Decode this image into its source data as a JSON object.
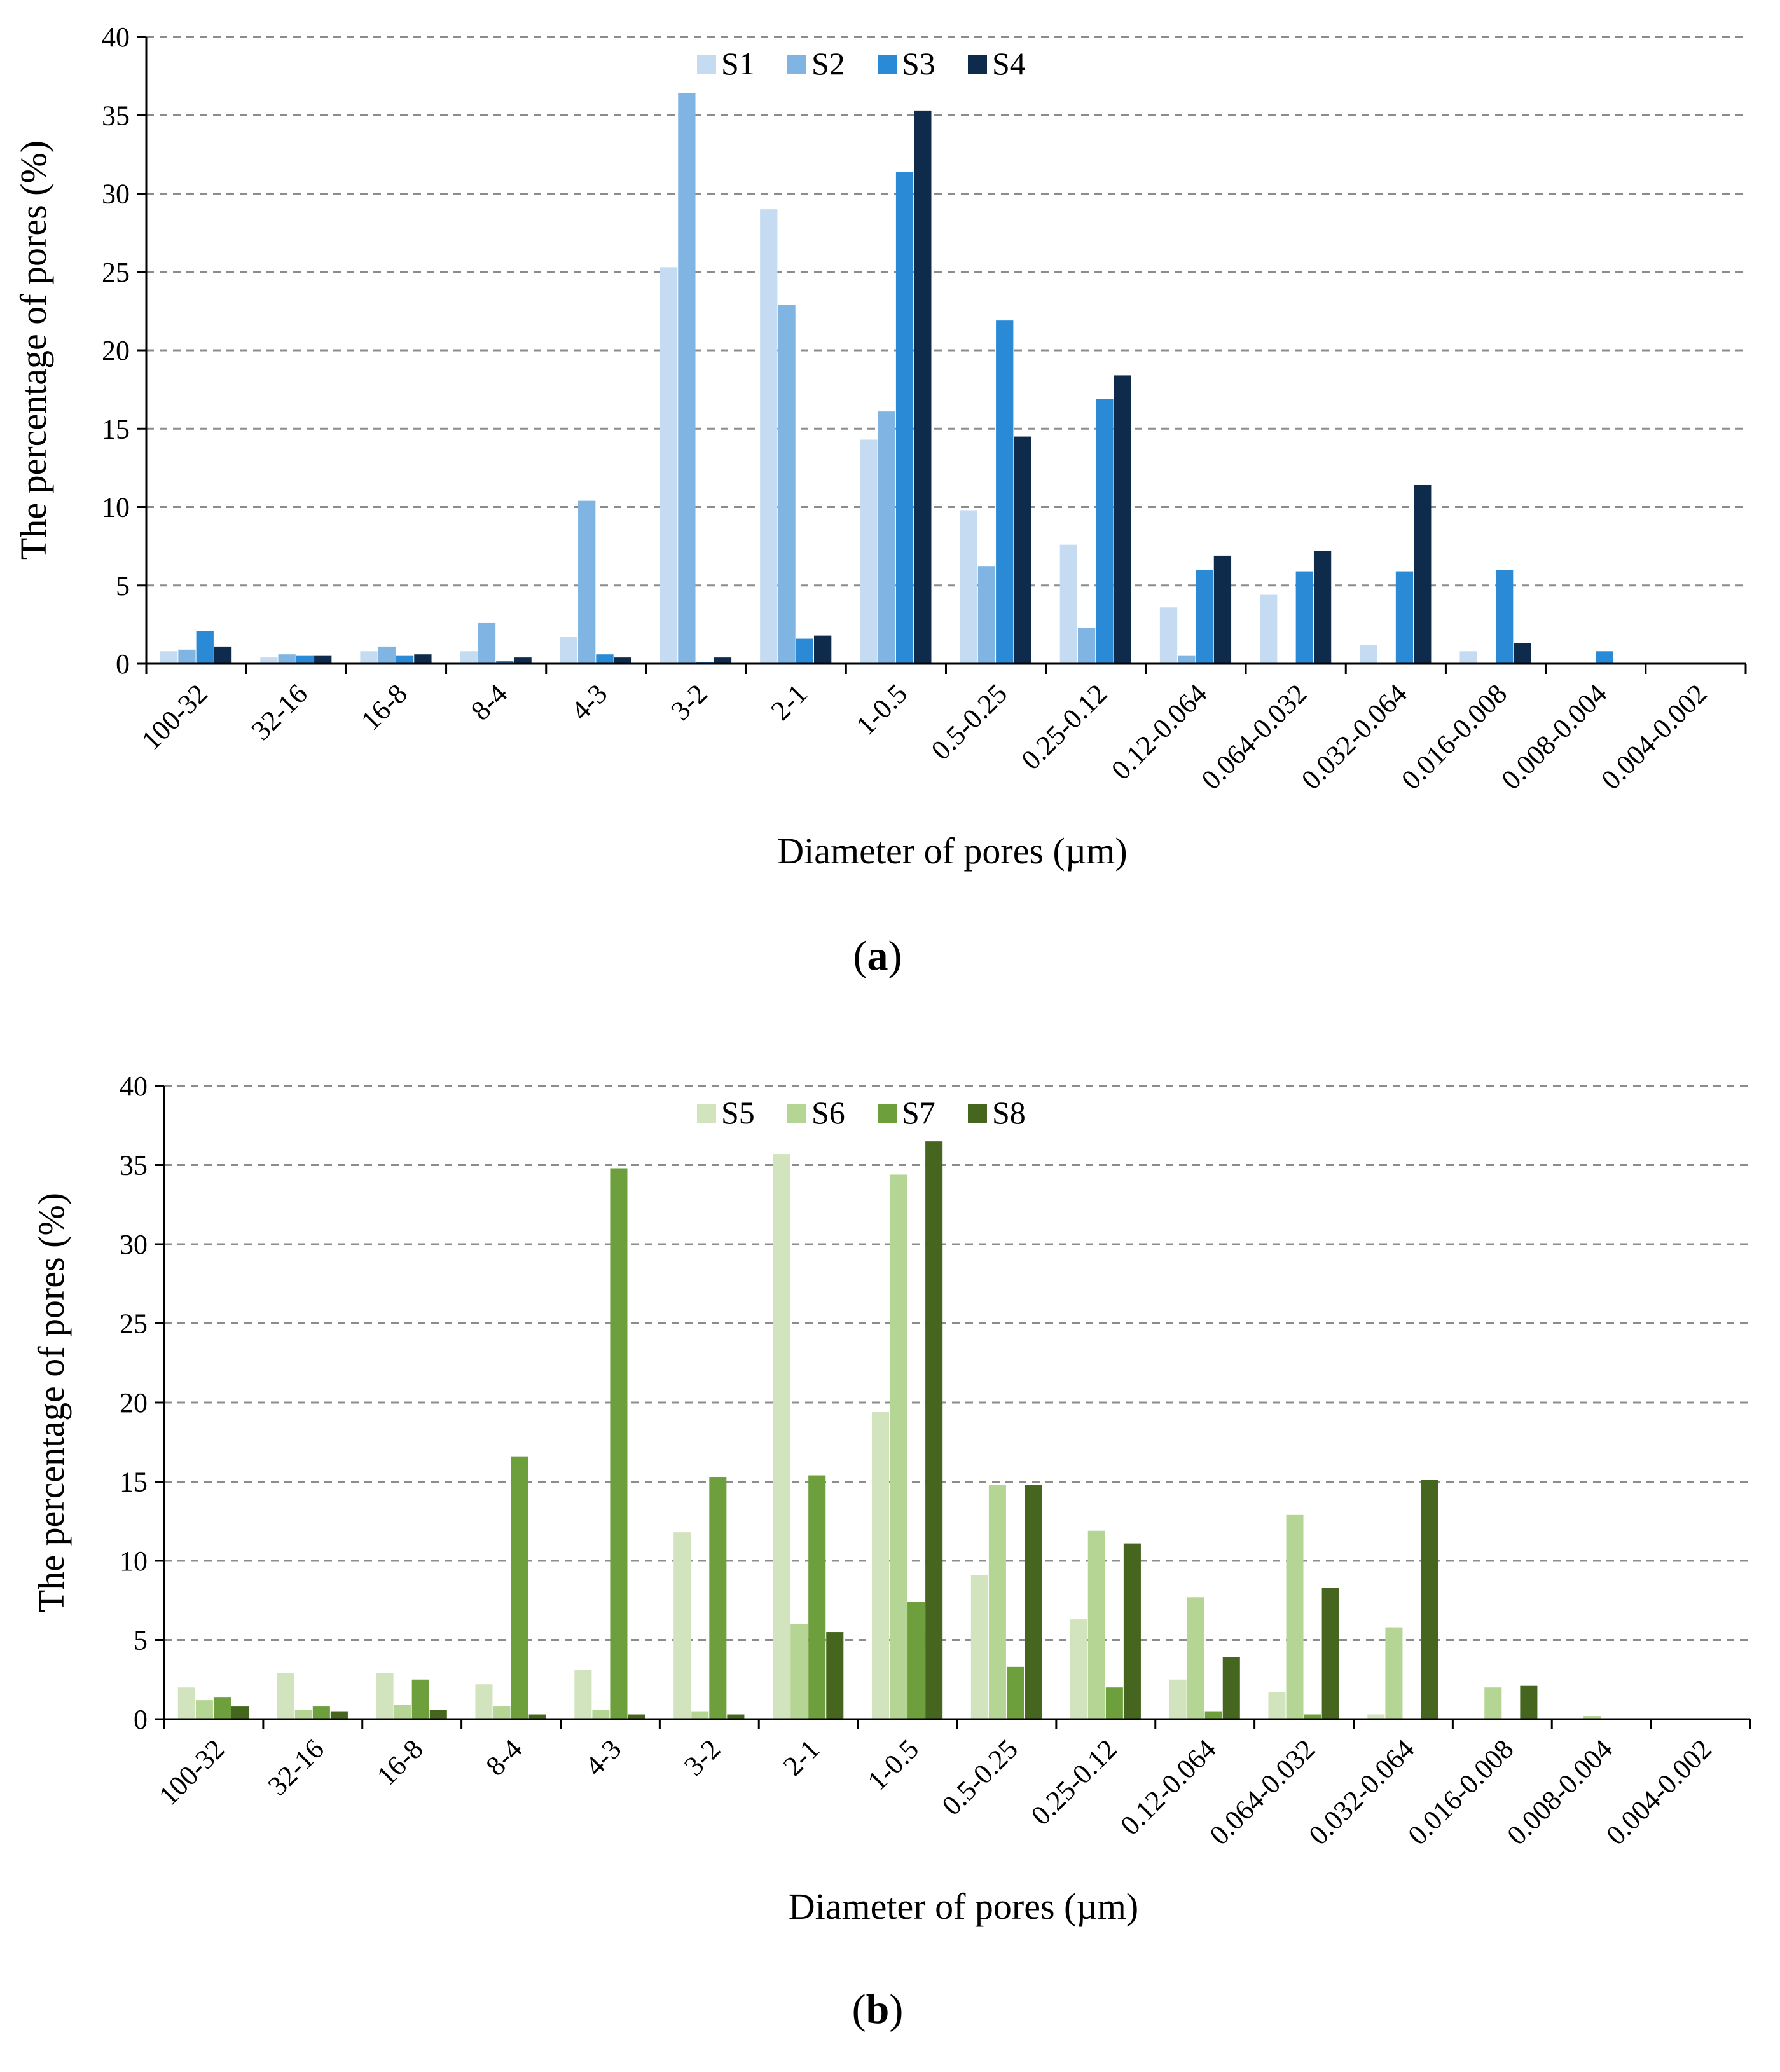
{
  "chart_data": [
    {
      "type": "bar",
      "panel": "a",
      "categories": [
        "100-32",
        "32-16",
        "16-8",
        "8-4",
        "4-3",
        "3-2",
        "2-1",
        "1-0.5",
        "0.5-0.25",
        "0.25-0.12",
        "0.12-0.064",
        "0.064-0.032",
        "0.032-0.064",
        "0.016-0.008",
        "0.008-0.004",
        "0.004-0.002"
      ],
      "series": [
        {
          "name": "S1",
          "color": "#c5dbf1",
          "values": [
            0.8,
            0.4,
            0.8,
            0.8,
            1.7,
            25.3,
            29.0,
            14.3,
            9.8,
            7.6,
            3.6,
            4.4,
            1.2,
            0.8,
            0.0,
            0.0
          ]
        },
        {
          "name": "S2",
          "color": "#80b4e3",
          "values": [
            0.9,
            0.6,
            1.1,
            2.6,
            10.4,
            36.4,
            22.9,
            16.1,
            6.2,
            2.3,
            0.5,
            0.0,
            0.0,
            0.0,
            0.0,
            0.0
          ]
        },
        {
          "name": "S3",
          "color": "#2a8ad5",
          "values": [
            2.1,
            0.5,
            0.5,
            0.2,
            0.6,
            0.1,
            1.6,
            31.4,
            21.9,
            16.9,
            6.0,
            5.9,
            5.9,
            6.0,
            0.8,
            0.0
          ]
        },
        {
          "name": "S4",
          "color": "#0f2b4c",
          "values": [
            1.1,
            0.5,
            0.6,
            0.4,
            0.4,
            0.4,
            1.8,
            35.3,
            14.5,
            18.4,
            6.9,
            7.2,
            11.4,
            1.3,
            0.0,
            0.0
          ]
        }
      ],
      "xlabel": "Diameter of pores (µm)",
      "ylabel": "The percentage of pores (%)",
      "ylim": [
        0,
        40
      ],
      "yticks": [
        "0",
        "5",
        "10",
        "15",
        "20",
        "25",
        "30",
        "35",
        "40"
      ],
      "grid": true,
      "legend": "top-center",
      "panel_label": "a"
    },
    {
      "type": "bar",
      "panel": "b",
      "categories": [
        "100-32",
        "32-16",
        "16-8",
        "8-4",
        "4-3",
        "3-2",
        "2-1",
        "1-0.5",
        "0.5-0.25",
        "0.25-0.12",
        "0.12-0.064",
        "0.064-0.032",
        "0.032-0.064",
        "0.016-0.008",
        "0.008-0.004",
        "0.004-0.002"
      ],
      "series": [
        {
          "name": "S5",
          "color": "#d2e4bd",
          "values": [
            2.0,
            2.9,
            2.9,
            2.2,
            3.1,
            11.8,
            35.7,
            19.4,
            9.1,
            6.3,
            2.5,
            1.7,
            0.3,
            0.0,
            0.0,
            0.0
          ]
        },
        {
          "name": "S6",
          "color": "#b5d595",
          "values": [
            1.2,
            0.6,
            0.9,
            0.8,
            0.6,
            0.5,
            6.0,
            34.4,
            14.8,
            11.9,
            7.7,
            12.9,
            5.8,
            2.0,
            0.2,
            0.0
          ]
        },
        {
          "name": "S7",
          "color": "#6e9f3d",
          "values": [
            1.4,
            0.8,
            2.5,
            16.6,
            34.8,
            15.3,
            15.4,
            7.4,
            3.3,
            2.0,
            0.5,
            0.3,
            0.0,
            0.0,
            0.0,
            0.0
          ]
        },
        {
          "name": "S8",
          "color": "#46661f",
          "values": [
            0.8,
            0.5,
            0.6,
            0.3,
            0.3,
            0.3,
            5.5,
            36.5,
            14.8,
            11.1,
            3.9,
            8.3,
            15.1,
            2.1,
            0.0,
            0.0
          ]
        }
      ],
      "xlabel": "Diameter of pores (µm)",
      "ylabel": "The percentage of pores (%)",
      "ylim": [
        0,
        40
      ],
      "yticks": [
        "0",
        "5",
        "10",
        "15",
        "20",
        "25",
        "30",
        "35",
        "40"
      ],
      "grid": true,
      "legend": "top-center",
      "panel_label": "b"
    }
  ]
}
